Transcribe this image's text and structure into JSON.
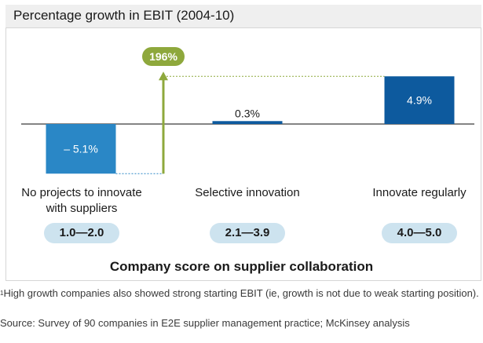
{
  "chart_data": {
    "type": "bar",
    "title": "Percentage growth in EBIT (2004-10)",
    "categories": [
      "No projects to innovate\nwith suppliers",
      "Selective innovation",
      "Innovate regularly"
    ],
    "values": [
      -5.1,
      0.3,
      4.9
    ],
    "value_labels": [
      "– 5.1%",
      "0.3%",
      "4.9%"
    ],
    "scores": [
      "1.0—2.0",
      "2.1—3.9",
      "4.0—5.0"
    ],
    "xlabel": "Company score on supplier collaboration",
    "ylabel": "",
    "ylim": [
      -5.1,
      5.0
    ],
    "grid": false,
    "annotation": {
      "text": "196%",
      "from_value": -5.1,
      "to_value": 4.9
    },
    "colors": {
      "negative_bar": "#2a87c6",
      "positive_bar": "#0d5a9e",
      "arrow": "#8ea83c",
      "badge": "#8ea83c",
      "score_pill": "#cde3ef"
    }
  },
  "footnote": {
    "marker": "1",
    "text": "High growth companies also showed strong starting EBIT (ie, growth is not due to weak starting position)."
  },
  "source": "Source: Survey of 90 companies in E2E supplier management practice; McKinsey analysis"
}
